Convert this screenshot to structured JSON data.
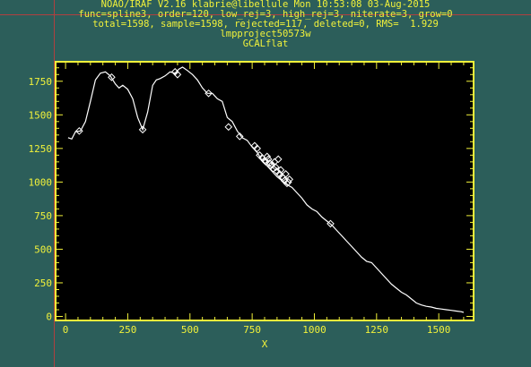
{
  "header": {
    "line1": "NOAO/IRAF V2.16 klabrie@libellule Mon 10:53:08 03-Aug-2015",
    "line2": "func=spline3, order=120, low_rej=3, high_rej=3, niterate=3, grow=0",
    "line3": "total=1598, sample=1598, rejected=117, deleted=0, RMS=  1.929",
    "line4": "lmpproject50573w",
    "line5": "GCALflat"
  },
  "colors": {
    "background": "#2c5e5a",
    "plot_background": "#000000",
    "axis": "#f2f23a",
    "curve": "#ffffff",
    "crosshair": "#b04040"
  },
  "chart_data": {
    "type": "line",
    "title": "GCALflat",
    "xlabel": "X",
    "ylabel": "",
    "xlim": [
      -40,
      1640
    ],
    "ylim": [
      -30,
      1895
    ],
    "xticks": [
      0,
      250,
      500,
      750,
      1000,
      1250,
      1500
    ],
    "yticks": [
      0,
      250,
      500,
      750,
      1000,
      1250,
      1500,
      1750
    ],
    "series": [
      {
        "kind": "fit-curve",
        "x": [
          10,
          25,
          40,
          60,
          80,
          100,
          120,
          140,
          160,
          180,
          200,
          215,
          230,
          250,
          270,
          290,
          310,
          330,
          350,
          365,
          380,
          400,
          420,
          440,
          455,
          470,
          490,
          510,
          530,
          550,
          570,
          590,
          610,
          630,
          650,
          670,
          690,
          710,
          730,
          750,
          770,
          790,
          810,
          830,
          850,
          870,
          890,
          910,
          930,
          950,
          970,
          990,
          1010,
          1030,
          1050,
          1070,
          1090,
          1110,
          1130,
          1150,
          1170,
          1190,
          1210,
          1230,
          1250,
          1270,
          1290,
          1310,
          1330,
          1350,
          1370,
          1390,
          1410,
          1430,
          1450,
          1470,
          1490,
          1510,
          1530,
          1550,
          1570,
          1590,
          1600
        ],
        "y": [
          1330,
          1320,
          1375,
          1380,
          1450,
          1600,
          1760,
          1810,
          1820,
          1790,
          1730,
          1700,
          1720,
          1690,
          1620,
          1480,
          1390,
          1520,
          1720,
          1760,
          1770,
          1790,
          1820,
          1810,
          1840,
          1855,
          1830,
          1800,
          1760,
          1700,
          1660,
          1660,
          1620,
          1600,
          1480,
          1450,
          1380,
          1330,
          1310,
          1260,
          1220,
          1160,
          1120,
          1080,
          1040,
          1010,
          980,
          960,
          920,
          880,
          830,
          800,
          780,
          740,
          710,
          680,
          640,
          600,
          560,
          520,
          480,
          440,
          410,
          400,
          360,
          320,
          280,
          240,
          210,
          180,
          160,
          130,
          100,
          85,
          75,
          70,
          60,
          55,
          50,
          45,
          40,
          35,
          30
        ]
      },
      {
        "kind": "rejected-points",
        "x": [
          55,
          185,
          310,
          440,
          450,
          575,
          655,
          700,
          760,
          770,
          780,
          790,
          800,
          805,
          810,
          815,
          820,
          825,
          830,
          835,
          840,
          845,
          850,
          855,
          860,
          865,
          870,
          875,
          880,
          885,
          890,
          895,
          900,
          1065
        ],
        "y": [
          1380,
          1780,
          1390,
          1820,
          1800,
          1660,
          1410,
          1340,
          1270,
          1250,
          1200,
          1180,
          1160,
          1150,
          1190,
          1170,
          1140,
          1120,
          1130,
          1100,
          1150,
          1110,
          1080,
          1170,
          1060,
          1090,
          1040,
          1030,
          1010,
          1060,
          990,
          1000,
          1020,
          690
        ]
      }
    ]
  }
}
